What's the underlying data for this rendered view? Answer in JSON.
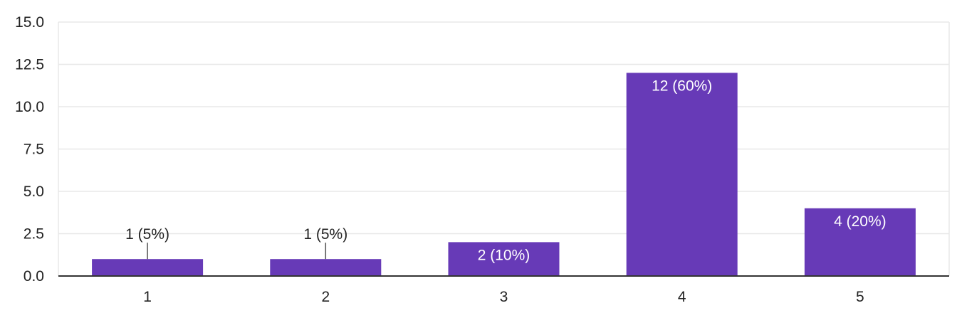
{
  "chart_data": {
    "type": "bar",
    "title": "",
    "xlabel": "",
    "ylabel": "",
    "categories": [
      "1",
      "2",
      "3",
      "4",
      "5"
    ],
    "values": [
      1,
      1,
      2,
      12,
      4
    ],
    "data_labels": [
      "1 (5%)",
      "1 (5%)",
      "2 (10%)",
      "12 (60%)",
      "4 (20%)"
    ],
    "ylim": [
      0,
      15
    ],
    "yticks": [
      0,
      2.5,
      5,
      7.5,
      10,
      12.5,
      15
    ],
    "ytick_labels": [
      "0.0",
      "2.5",
      "5.0",
      "7.5",
      "10.0",
      "12.5",
      "15.0"
    ],
    "grid": true,
    "legend": "none",
    "colors": {
      "bar": "#673AB7",
      "grid": "#E8E8E8",
      "axis": "#333333",
      "text": "#222222",
      "label_inside": "#ffffff"
    }
  }
}
